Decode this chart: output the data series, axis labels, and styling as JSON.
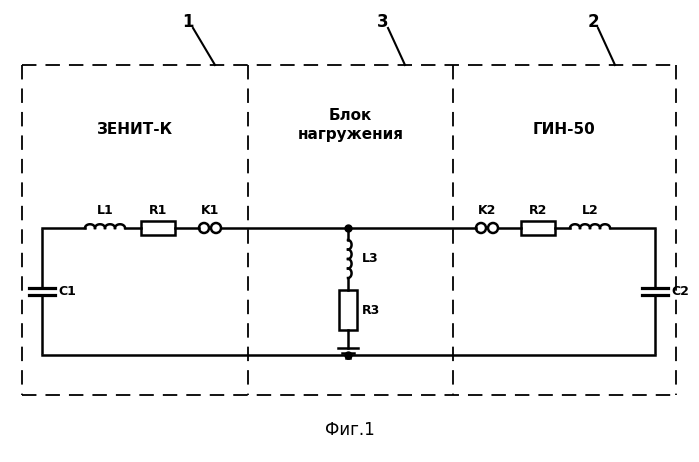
{
  "title": "Фиг.1",
  "box1_label": "ЗЕНИТ-К",
  "box2_label": "ГИН-50",
  "box3_label": "Блок\nнагружения",
  "label1": "1",
  "label2": "2",
  "label3": "3",
  "L1": "L1",
  "R1": "R1",
  "K1": "K1",
  "L2": "L2",
  "R2": "R2",
  "K2": "K2",
  "L3": "L3",
  "R3": "R3",
  "C1": "C1",
  "C2": "C2",
  "line_color": "#000000",
  "bg_color": "#ffffff",
  "lw": 1.8,
  "dlw": 1.3
}
